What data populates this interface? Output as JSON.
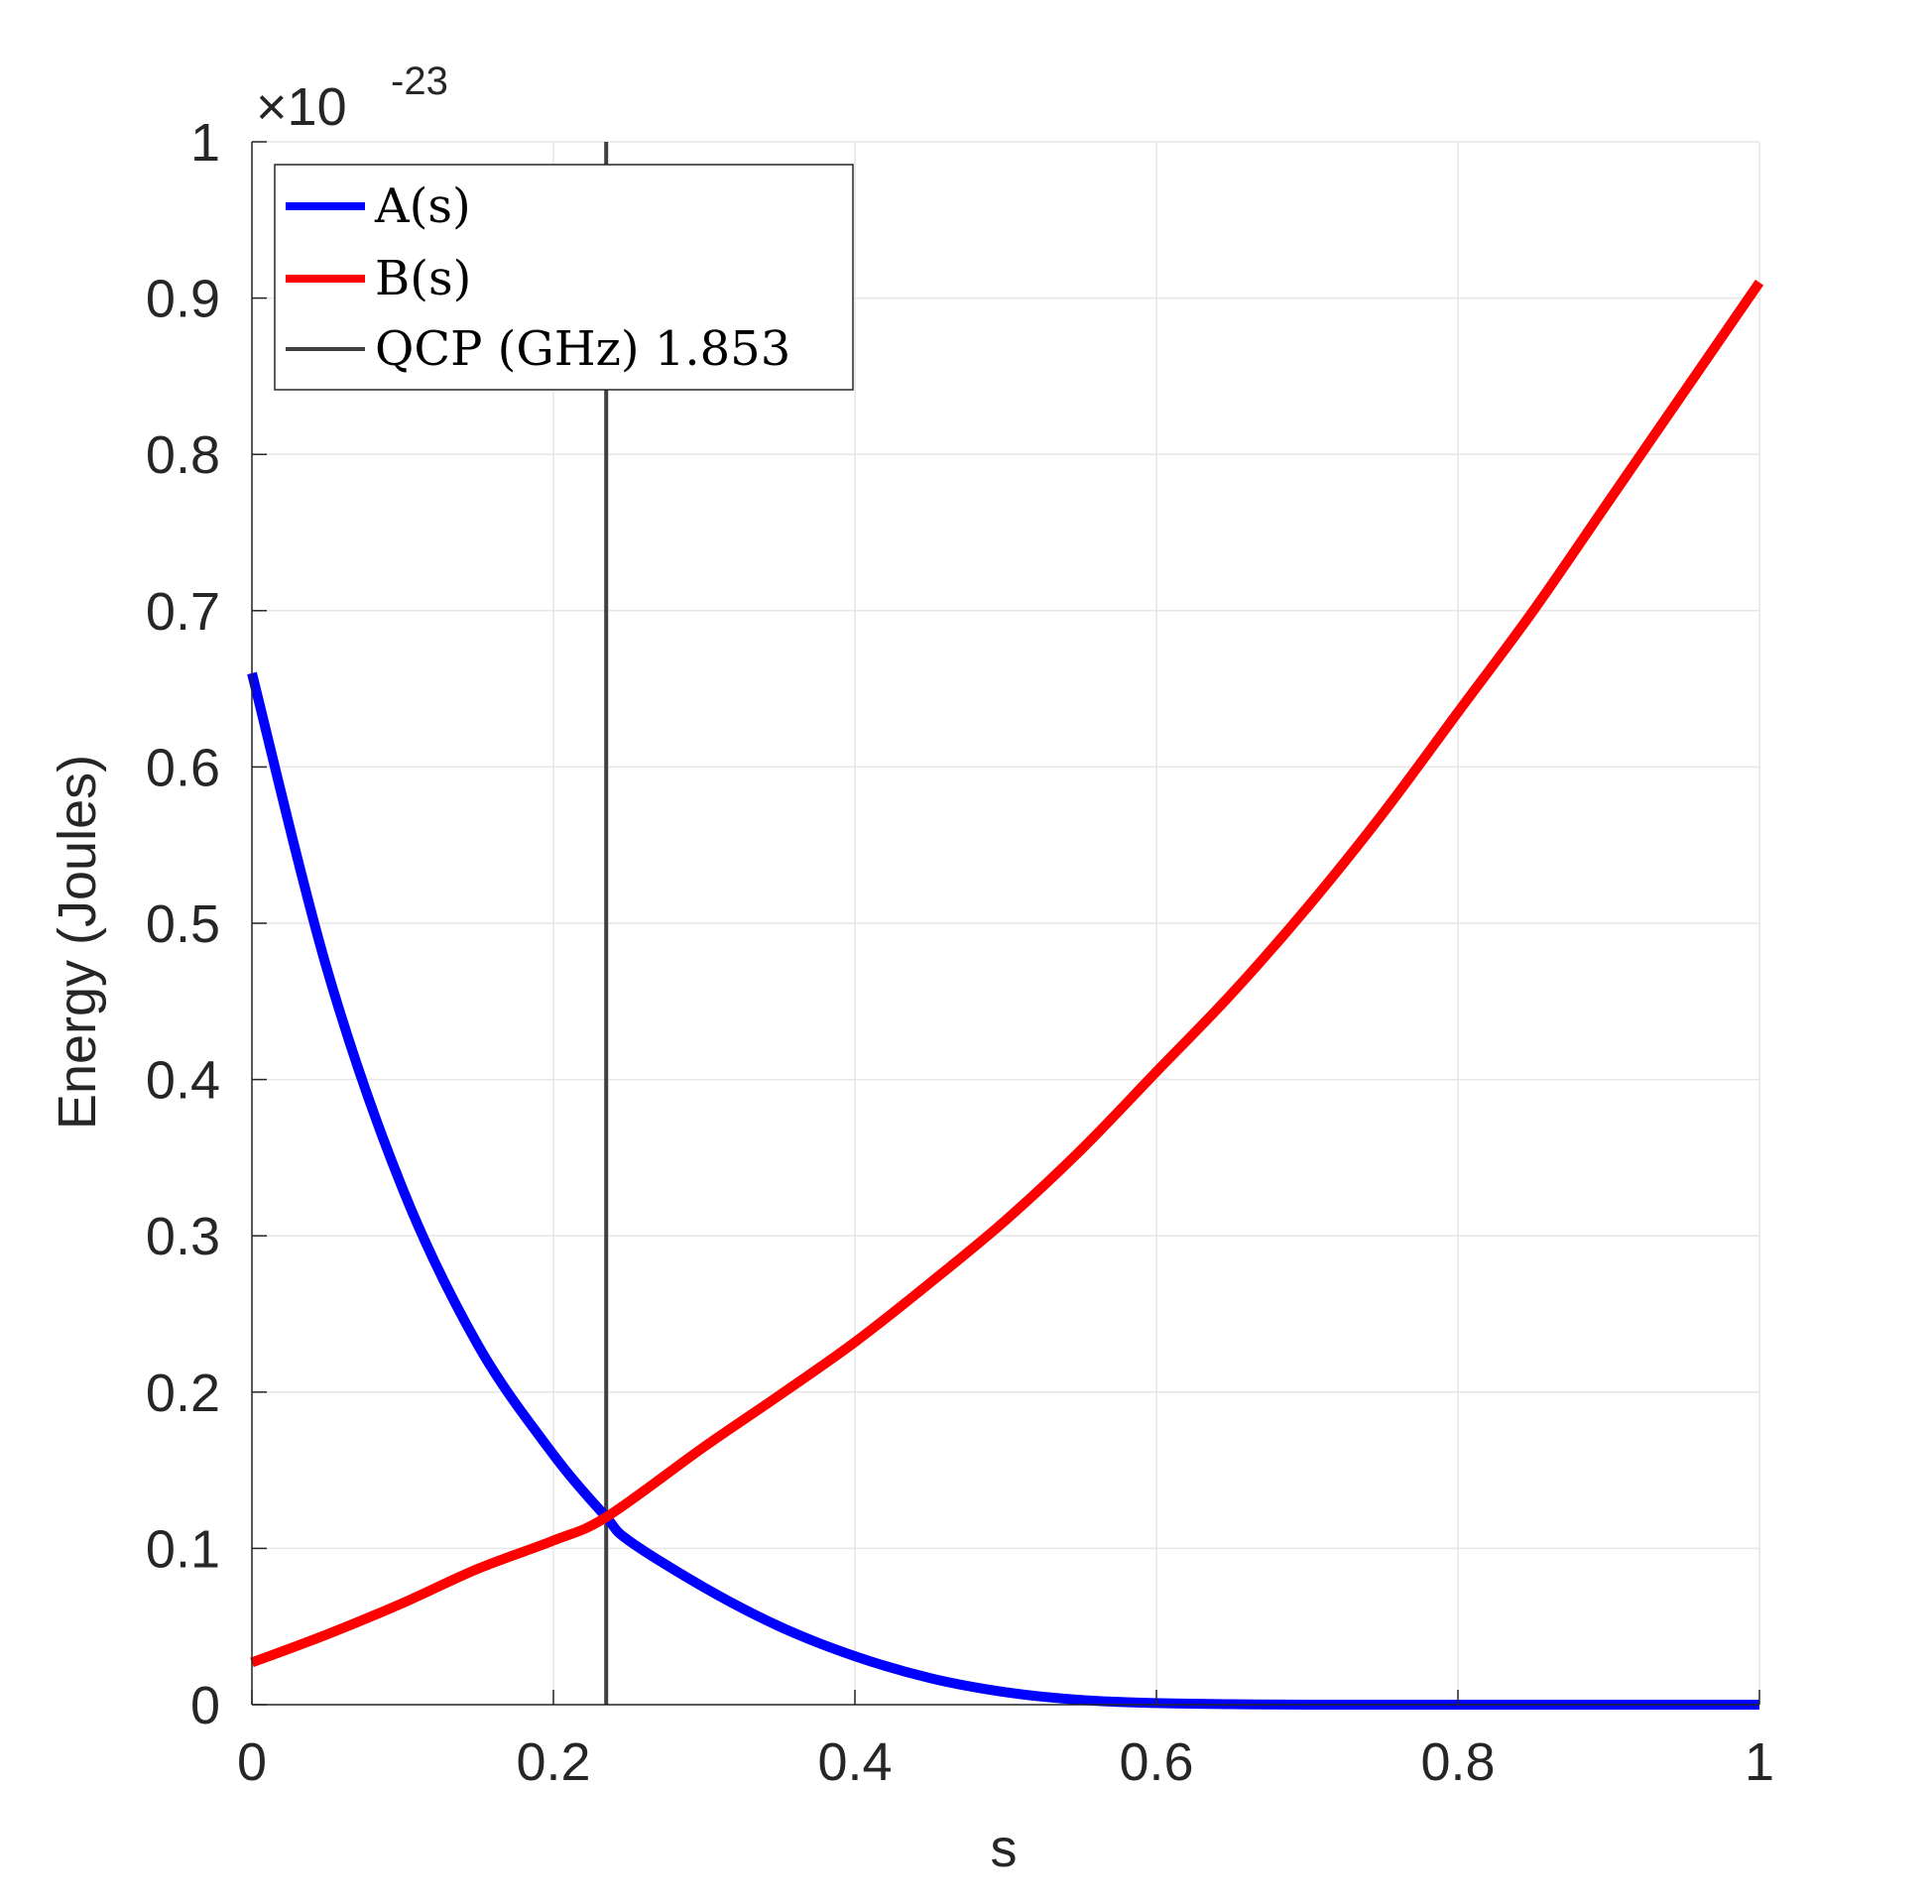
{
  "chart_data": {
    "type": "line",
    "xlabel": "s",
    "ylabel": "Energy (Joules)",
    "xlim": [
      0,
      1
    ],
    "ylim": [
      0,
      1
    ],
    "y_multiplier": "×10",
    "y_exponent": "-23",
    "x_ticks": [
      "0",
      "0.2",
      "0.4",
      "0.6",
      "0.8",
      "1"
    ],
    "y_ticks": [
      "0",
      "0.1",
      "0.2",
      "0.3",
      "0.4",
      "0.5",
      "0.6",
      "0.7",
      "0.8",
      "0.9",
      "1"
    ],
    "grid": true,
    "legend_position": "top-left",
    "series": [
      {
        "name": "A(s)",
        "color": "#0000ff",
        "x": [
          0,
          0.05,
          0.1,
          0.15,
          0.2,
          0.235,
          0.25,
          0.3,
          0.35,
          0.4,
          0.45,
          0.5,
          0.55,
          0.6,
          0.65,
          0.7,
          0.8,
          0.9,
          1.0
        ],
        "y": [
          0.66,
          0.47,
          0.33,
          0.23,
          0.16,
          0.12,
          0.105,
          0.075,
          0.05,
          0.031,
          0.017,
          0.008,
          0.003,
          0.001,
          0.0003,
          0,
          0,
          0,
          0
        ]
      },
      {
        "name": "B(s)",
        "color": "#ff0000",
        "x": [
          0,
          0.05,
          0.1,
          0.15,
          0.2,
          0.235,
          0.3,
          0.35,
          0.4,
          0.45,
          0.5,
          0.55,
          0.6,
          0.65,
          0.7,
          0.75,
          0.8,
          0.85,
          0.9,
          0.95,
          1.0
        ],
        "y": [
          0.027,
          0.045,
          0.065,
          0.087,
          0.105,
          0.12,
          0.165,
          0.198,
          0.232,
          0.27,
          0.31,
          0.355,
          0.405,
          0.455,
          0.51,
          0.57,
          0.635,
          0.7,
          0.77,
          0.84,
          0.91
        ]
      }
    ],
    "vertical_line": {
      "name": "QCP (GHz) 1.853",
      "x": 0.235,
      "color": "#404040"
    }
  },
  "legend": {
    "items": [
      {
        "label": "A(s)",
        "color": "#0000ff"
      },
      {
        "label": "B(s)",
        "color": "#ff0000"
      },
      {
        "label": "QCP (GHz) 1.853",
        "color": "#404040"
      }
    ]
  },
  "colors": {
    "axis": "#262626",
    "grid": "#e6e6e6",
    "background": "#ffffff"
  }
}
